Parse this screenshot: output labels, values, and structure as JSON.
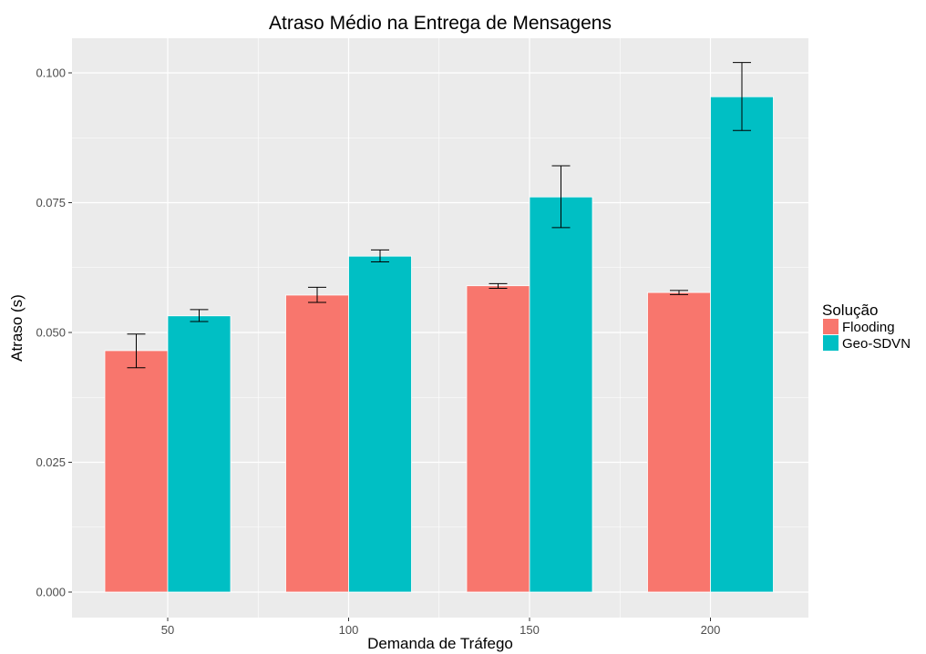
{
  "chart_data": {
    "type": "bar",
    "title": "Atraso Médio na Entrega de Mensagens",
    "xlabel": "Demanda de Tráfego",
    "ylabel": "Atraso (s)",
    "categories": [
      "50",
      "100",
      "150",
      "200"
    ],
    "ylim": [
      0,
      0.1
    ],
    "yticks": [
      "0.000",
      "0.025",
      "0.050",
      "0.075",
      "0.100"
    ],
    "ytick_values": [
      0,
      0.025,
      0.05,
      0.075,
      0.1
    ],
    "grid": true,
    "legend_title": "Solução",
    "legend_position": "right",
    "series": [
      {
        "name": "Flooding",
        "color": "#F8766D",
        "values": [
          0.0465,
          0.0572,
          0.059,
          0.0577
        ],
        "error_low": [
          0.0432,
          0.0558,
          0.0585,
          0.0573
        ],
        "error_high": [
          0.0497,
          0.0587,
          0.0594,
          0.0581
        ]
      },
      {
        "name": "Geo-SDVN",
        "color": "#00BFC4",
        "values": [
          0.0532,
          0.0647,
          0.0761,
          0.0954
        ],
        "error_low": [
          0.0521,
          0.0636,
          0.0702,
          0.0889
        ],
        "error_high": [
          0.0544,
          0.0659,
          0.0821,
          0.102
        ]
      }
    ]
  }
}
